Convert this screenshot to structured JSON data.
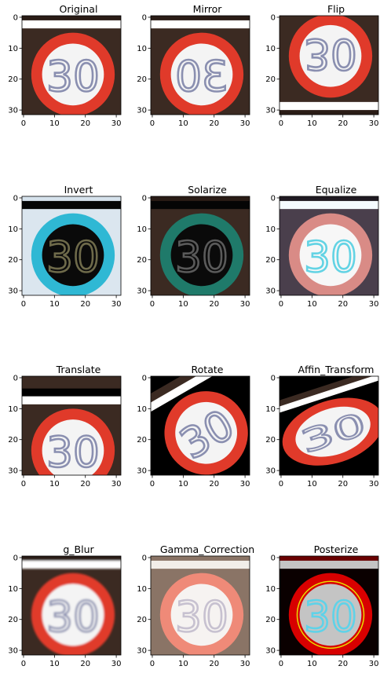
{
  "panels": [
    {
      "title": "Original",
      "variant": "original"
    },
    {
      "title": "Mirror",
      "variant": "mirror"
    },
    {
      "title": "Flip",
      "variant": "flip"
    },
    {
      "title": "Invert",
      "variant": "invert"
    },
    {
      "title": "Solarize",
      "variant": "solarize"
    },
    {
      "title": "Equalize",
      "variant": "equalize"
    },
    {
      "title": "Translate",
      "variant": "translate"
    },
    {
      "title": "Rotate",
      "variant": "rotate"
    },
    {
      "title": "Affin_Transform",
      "variant": "affine"
    },
    {
      "title": "g_Blur",
      "variant": "blur"
    },
    {
      "title": "Gamma_Correction",
      "variant": "gamma"
    },
    {
      "title": "Posterize",
      "variant": "posterize"
    }
  ],
  "axes": {
    "x_ticks": [
      "0",
      "10",
      "20",
      "30"
    ],
    "y_ticks": [
      "0",
      "10",
      "20",
      "30"
    ]
  },
  "sign_text": "30"
}
